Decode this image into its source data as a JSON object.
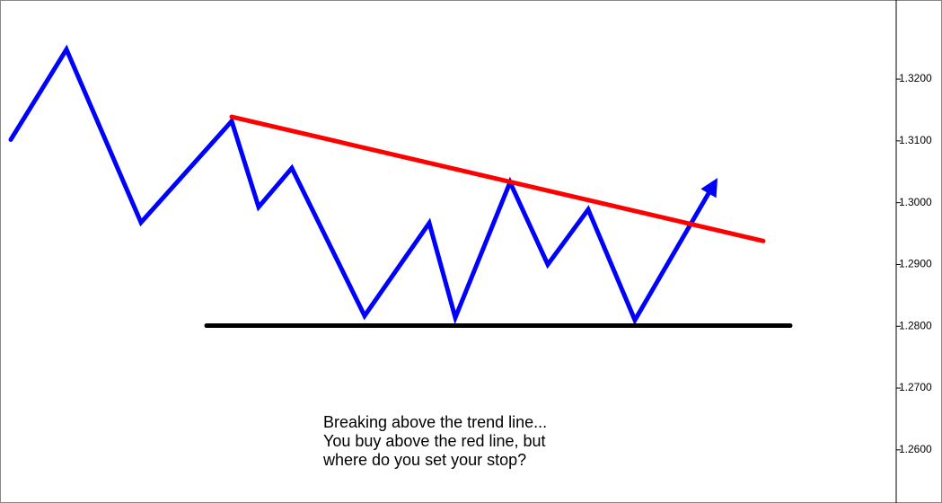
{
  "chart_data": {
    "type": "line",
    "annotation": [
      "Breaking above the trend line...",
      "You buy above the red line, but",
      "where do you set your stop?"
    ],
    "xlim": [
      0,
      998
    ],
    "ylim": [
      1.2514,
      1.3328
    ],
    "yticks": [
      {
        "value": 1.32,
        "label": "1.3200"
      },
      {
        "value": 1.31,
        "label": "1.3100"
      },
      {
        "value": 1.3,
        "label": "1.3000"
      },
      {
        "value": 1.29,
        "label": "1.2900"
      },
      {
        "value": 1.28,
        "label": "1.2800"
      },
      {
        "value": 1.27,
        "label": "1.2700"
      },
      {
        "value": 1.26,
        "label": "1.2600"
      }
    ],
    "series": [
      {
        "color": "#0000ff",
        "arrow": true,
        "x": [
          12,
          74,
          157,
          258,
          288,
          325,
          406,
          478,
          507,
          568,
          610,
          655,
          707,
          795
        ],
        "values": [
          1.3102,
          1.3248,
          1.2968,
          1.3132,
          1.2993,
          1.3056,
          1.2817,
          1.2967,
          1.2814,
          1.3033,
          1.29,
          1.2989,
          1.281,
          1.303
        ]
      },
      {
        "color": "#ff0000",
        "x": [
          258,
          850
        ],
        "values": [
          1.3139,
          1.2938
        ]
      },
      {
        "color": "#000000",
        "x": [
          230,
          880
        ],
        "values": [
          1.2801,
          1.2801
        ]
      }
    ]
  }
}
